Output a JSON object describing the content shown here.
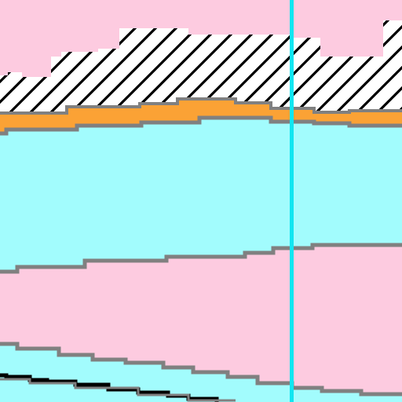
{
  "colors": {
    "pink": "#fdcbe0",
    "cyan_fill": "#a2fcfd",
    "orange": "#fba235",
    "white": "#ffffff",
    "hatch": "#000000",
    "boundary": "#808080",
    "cursor_line": "#10e6f1"
  }
}
